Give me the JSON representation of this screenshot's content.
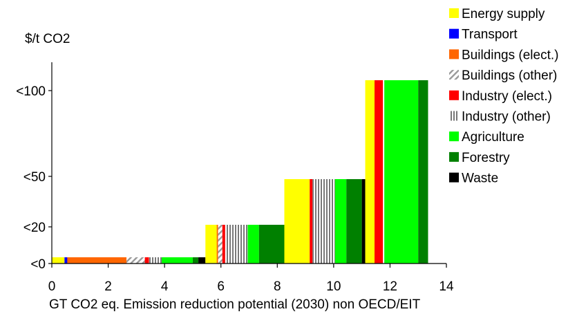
{
  "chart_data": {
    "type": "bar",
    "ylabel": "$/t CO2",
    "xlabel": "GT CO2 eq. Emission reduction potential (2030)  non OECD/EIT",
    "xlim": [
      0,
      14
    ],
    "x_ticks": [
      "0",
      "2",
      "4",
      "6",
      "8",
      "10",
      "12",
      "14"
    ],
    "y_categories": [
      "<0",
      "<20",
      "<50",
      "<100"
    ],
    "grid": false,
    "legend_position": "top-right",
    "series": [
      {
        "name": "Energy supply",
        "color": "#ffff00",
        "pattern": "solid"
      },
      {
        "name": "Transport",
        "color": "#0000ff",
        "pattern": "solid"
      },
      {
        "name": "Buildings (elect.)",
        "color": "#ff6600",
        "pattern": "solid"
      },
      {
        "name": "Buildings (other)",
        "color": "#999999",
        "pattern": "diagonal"
      },
      {
        "name": "Industry (elect.)",
        "color": "#ff0000",
        "pattern": "solid"
      },
      {
        "name": "Industry (other)",
        "color": "#777777",
        "pattern": "vertical"
      },
      {
        "name": "Agriculture",
        "color": "#00ff00",
        "pattern": "solid"
      },
      {
        "name": "Forestry",
        "color": "#008000",
        "pattern": "solid"
      },
      {
        "name": "Waste",
        "color": "#000000",
        "pattern": "solid"
      }
    ],
    "segments": [
      {
        "cost": "<0",
        "series": "Energy supply",
        "x0": 0.0,
        "x1": 0.45
      },
      {
        "cost": "<0",
        "series": "Transport",
        "x0": 0.45,
        "x1": 0.55
      },
      {
        "cost": "<0",
        "series": "Buildings (elect.)",
        "x0": 0.55,
        "x1": 2.65
      },
      {
        "cost": "<0",
        "series": "Buildings (other)",
        "x0": 2.65,
        "x1": 3.3
      },
      {
        "cost": "<0",
        "series": "Industry (elect.)",
        "x0": 3.3,
        "x1": 3.45
      },
      {
        "cost": "<0",
        "series": "Industry (other)",
        "x0": 3.45,
        "x1": 3.9
      },
      {
        "cost": "<0",
        "series": "Agriculture",
        "x0": 3.9,
        "x1": 5.0
      },
      {
        "cost": "<0",
        "series": "Forestry",
        "x0": 5.0,
        "x1": 5.2
      },
      {
        "cost": "<0",
        "series": "Waste",
        "x0": 5.2,
        "x1": 5.45
      },
      {
        "cost": "<20",
        "series": "Energy supply",
        "x0": 5.45,
        "x1": 5.85
      },
      {
        "cost": "<20",
        "series": "Buildings (elect.)",
        "x0": 5.85,
        "x1": 5.9
      },
      {
        "cost": "<20",
        "series": "Buildings (other)",
        "x0": 5.9,
        "x1": 6.05
      },
      {
        "cost": "<20",
        "series": "Industry (elect.)",
        "x0": 6.05,
        "x1": 6.15
      },
      {
        "cost": "<20",
        "series": "Industry (other)",
        "x0": 6.15,
        "x1": 6.95
      },
      {
        "cost": "<20",
        "series": "Agriculture",
        "x0": 6.95,
        "x1": 7.35
      },
      {
        "cost": "<20",
        "series": "Forestry",
        "x0": 7.35,
        "x1": 8.25
      },
      {
        "cost": "<50",
        "series": "Energy supply",
        "x0": 8.25,
        "x1": 9.15
      },
      {
        "cost": "<50",
        "series": "Industry (elect.)",
        "x0": 9.15,
        "x1": 9.25
      },
      {
        "cost": "<50",
        "series": "Industry (other)",
        "x0": 9.25,
        "x1": 10.05
      },
      {
        "cost": "<50",
        "series": "Agriculture",
        "x0": 10.05,
        "x1": 10.45
      },
      {
        "cost": "<50",
        "series": "Forestry",
        "x0": 10.45,
        "x1": 11.0
      },
      {
        "cost": "<50",
        "series": "Waste",
        "x0": 11.0,
        "x1": 11.12
      },
      {
        "cost": "<100",
        "series": "Energy supply",
        "x0": 11.12,
        "x1": 11.45
      },
      {
        "cost": "<100",
        "series": "Industry (elect.)",
        "x0": 11.45,
        "x1": 11.75
      },
      {
        "cost": "<100",
        "series": "Industry (other)",
        "x0": 11.75,
        "x1": 11.8
      },
      {
        "cost": "<100",
        "series": "Agriculture",
        "x0": 11.8,
        "x1": 13.0
      },
      {
        "cost": "<100",
        "series": "Forestry",
        "x0": 13.0,
        "x1": 13.35
      }
    ]
  }
}
